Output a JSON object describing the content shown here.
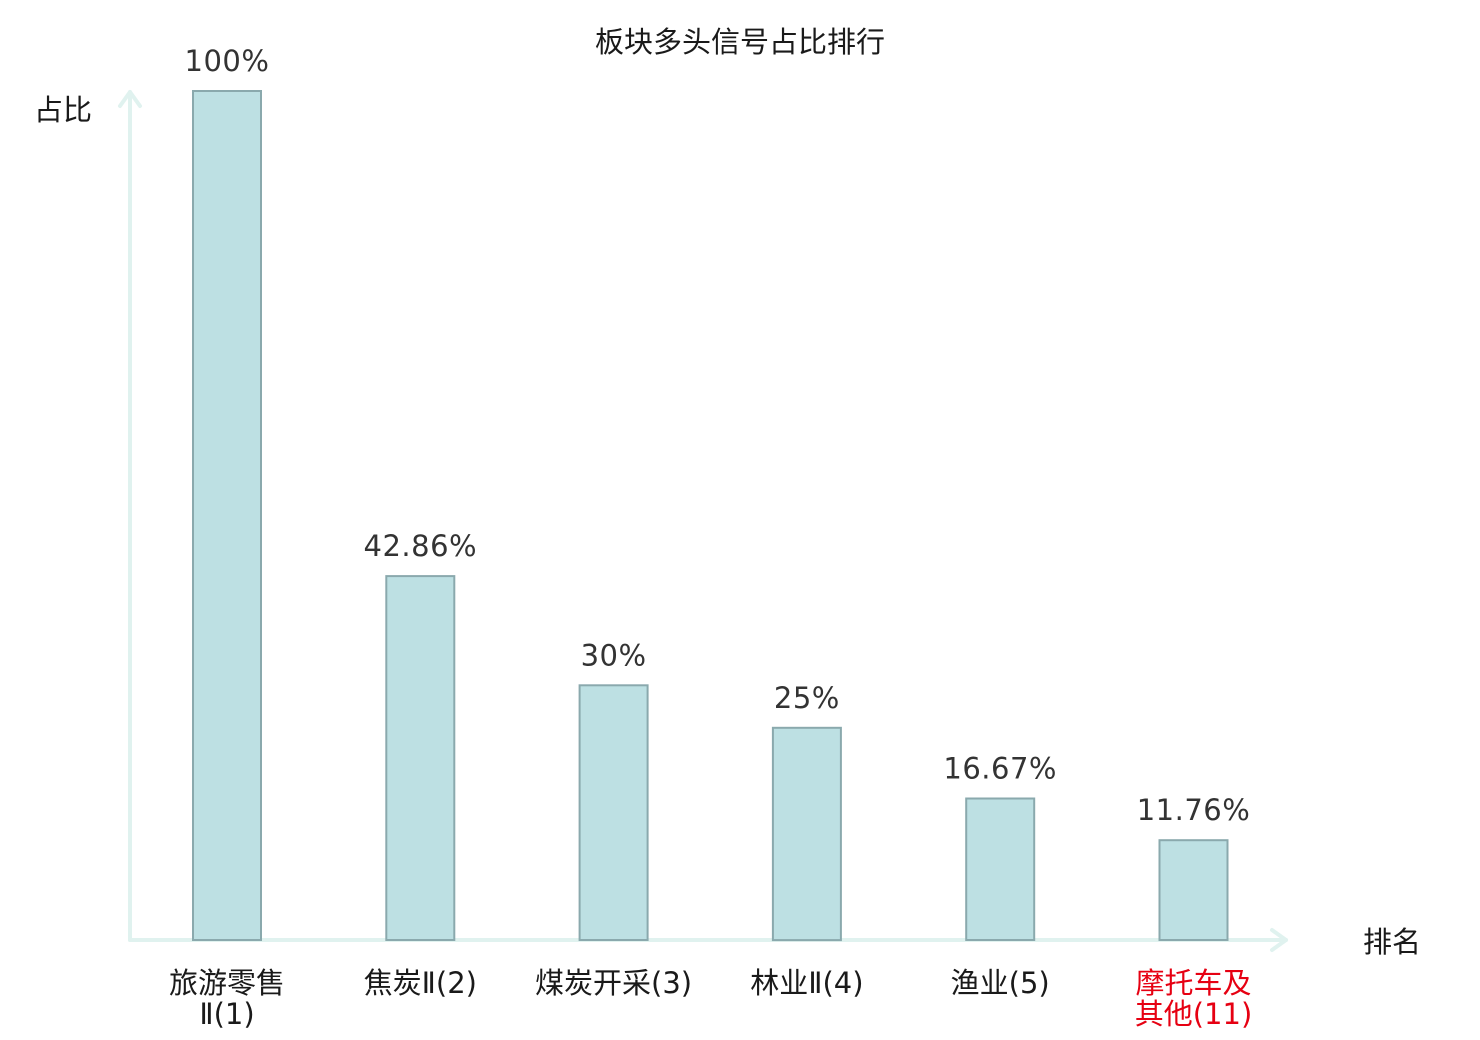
{
  "chart_data": {
    "type": "bar",
    "title": "板块多头信号占比排行",
    "ylabel": "占比",
    "xlabel": "排名",
    "ylim": [
      0,
      100
    ],
    "grid": false,
    "categories": [
      [
        "旅游零售",
        "Ⅱ(1)"
      ],
      [
        "焦炭Ⅱ(2)"
      ],
      [
        "煤炭开采(3)"
      ],
      [
        "林业Ⅱ(4)"
      ],
      [
        "渔业(5)"
      ],
      [
        "摩托车及",
        "其他(11)"
      ]
    ],
    "highlight_index": 5,
    "series": [
      {
        "values": [
          100,
          42.86,
          30,
          25,
          16.67,
          11.76
        ],
        "labels": [
          "100%",
          "42.86%",
          "30%",
          "25%",
          "16.67%",
          "11.76%"
        ]
      }
    ]
  },
  "colors": {
    "bar_fill": "#bde0e3",
    "bar_stroke": "#8aa9ad",
    "axis": "#e0f2ef",
    "text": "#1a1a1a",
    "value_text": "#333333",
    "highlight": "#e60012"
  }
}
